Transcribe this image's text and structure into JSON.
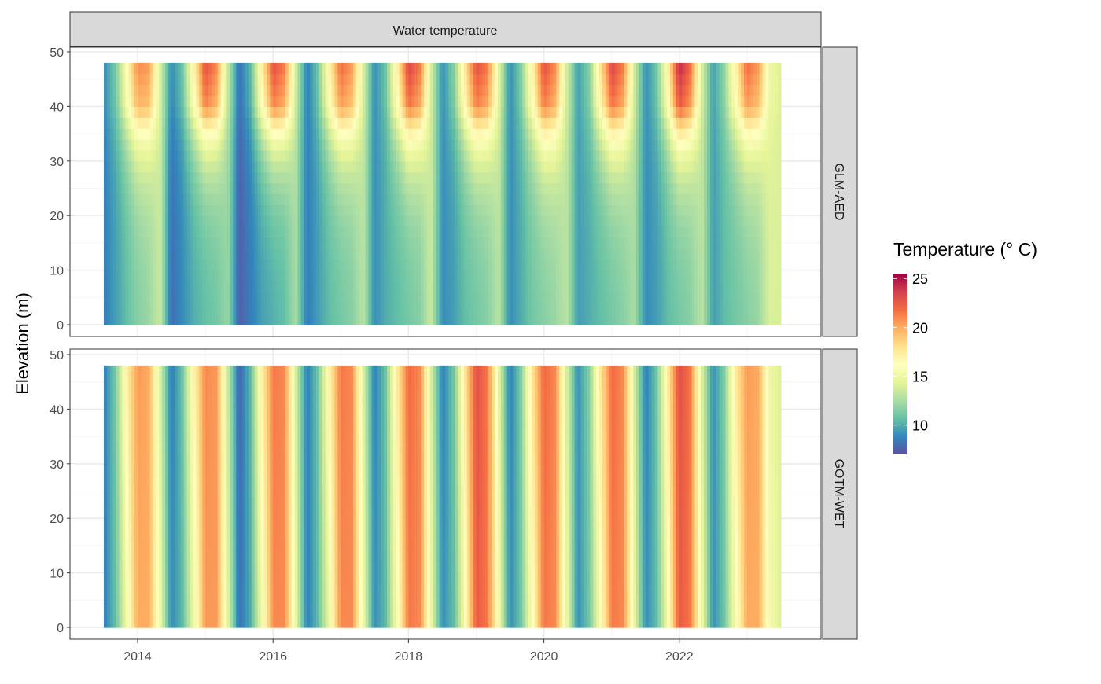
{
  "chart_data": {
    "type": "heatmap",
    "title": "Water temperature",
    "xlabel": "",
    "ylabel": "Elevation (m)",
    "x_ticks": [
      "2014",
      "2016",
      "2018",
      "2020",
      "2022"
    ],
    "x_tick_values": [
      2014,
      2016,
      2018,
      2020,
      2022
    ],
    "y_ticks": [
      "0",
      "10",
      "20",
      "30",
      "40",
      "50"
    ],
    "y_tick_values": [
      0,
      10,
      20,
      30,
      40,
      50
    ],
    "xlim": [
      2013.0,
      2024.0
    ],
    "ylim": [
      -2,
      50.5
    ],
    "elevation_range": [
      0,
      48
    ],
    "time_start": 2013.5,
    "time_step_years": 0.16667,
    "legend": {
      "title": "Temperature (° C)",
      "ticks": [
        "25",
        "20",
        "15",
        "10"
      ],
      "tick_values": [
        25,
        20,
        15,
        10
      ],
      "range": [
        7,
        25.5
      ],
      "palette": [
        "#9E0142",
        "#D53E4F",
        "#F46D43",
        "#FDAE61",
        "#FEE08B",
        "#FFFFBF",
        "#E6F598",
        "#ABDDA4",
        "#66C2A5",
        "#3288BD",
        "#5E4FA2"
      ],
      "placement": "right"
    },
    "panels": [
      {
        "name": "GLM-AED",
        "profile": "stratified",
        "surface": [
          9,
          11,
          16,
          21,
          20.5,
          14,
          9,
          11,
          17,
          23,
          21,
          13.5,
          8,
          10.5,
          17,
          23,
          21.5,
          14,
          8.5,
          11,
          17,
          22,
          20.5,
          14,
          9,
          11,
          17,
          23.5,
          21.5,
          14,
          9,
          11.5,
          17.5,
          23,
          21.5,
          14.5,
          9,
          11.5,
          17,
          23,
          21,
          14,
          9.5,
          11.5,
          17.5,
          23.5,
          21.5,
          14,
          9,
          11,
          17,
          24.5,
          22,
          14,
          9.5,
          12,
          17,
          22,
          20.5,
          15,
          14
        ],
        "bottom": [
          8.5,
          9.5,
          10.5,
          11.5,
          12,
          13.5,
          8,
          9,
          10,
          10.5,
          11,
          12,
          7.5,
          8.5,
          9.5,
          10,
          10.5,
          12.5,
          8.5,
          9.5,
          10.5,
          11,
          11.5,
          13,
          9,
          10,
          10.5,
          11,
          11.5,
          13.5,
          9,
          9.5,
          10.5,
          11,
          11.5,
          13,
          9,
          10,
          11,
          11.5,
          12,
          13,
          9.5,
          10,
          10.5,
          11,
          11.5,
          12.5,
          9,
          9.5,
          10.5,
          11,
          11.5,
          13,
          9.5,
          10.5,
          11,
          11.5,
          12,
          14,
          14
        ]
      },
      {
        "name": "GOTM-WET",
        "profile": "mixed",
        "surface": [
          8.5,
          11,
          17,
          20.5,
          20,
          14,
          8.5,
          11,
          17,
          21,
          20.5,
          13.5,
          7.5,
          10.5,
          17,
          21.5,
          21,
          14,
          8.5,
          11,
          17,
          21.5,
          21,
          14,
          8.5,
          11,
          17.5,
          22,
          21,
          14,
          8.5,
          11,
          17.5,
          23,
          21.5,
          14.5,
          8.5,
          11.5,
          18,
          22,
          21,
          14,
          9,
          11.5,
          17.5,
          22,
          21,
          14,
          8.5,
          11,
          17.5,
          23,
          21.5,
          14,
          9,
          11.5,
          17.5,
          20.5,
          20,
          15,
          14
        ],
        "bottom": [
          8.5,
          10.5,
          15,
          20,
          20,
          15,
          9,
          10.5,
          15,
          20.5,
          20.5,
          14.5,
          8,
          10,
          15,
          21,
          21,
          15,
          8.5,
          10.5,
          15,
          21,
          21,
          15,
          9,
          10.5,
          15.5,
          21.5,
          21,
          15,
          9,
          10.5,
          15.5,
          22.5,
          21.5,
          15.5,
          9,
          11,
          16,
          21.5,
          21,
          15,
          9,
          11,
          15.5,
          21.5,
          21,
          15,
          9,
          10.5,
          15.5,
          22.5,
          21.5,
          15,
          9,
          11,
          15.5,
          20,
          20,
          15.5,
          14
        ]
      }
    ]
  }
}
